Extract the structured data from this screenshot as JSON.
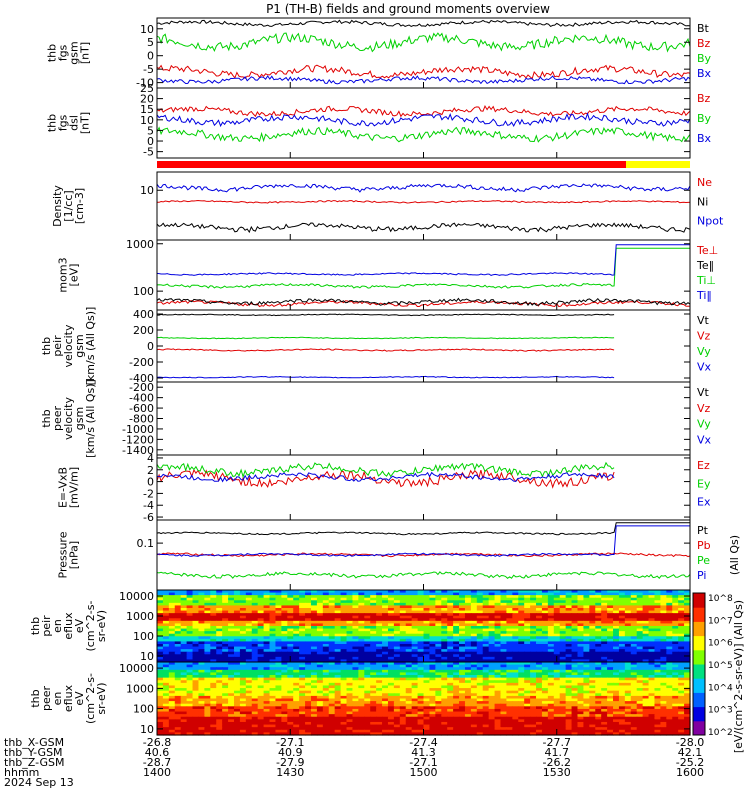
{
  "title": "P1 (TH-B) fields and ground moments overview",
  "colors": {
    "black": "#000000",
    "red": "#e00000",
    "green": "#00d000",
    "blue": "#0000e0",
    "yellow": "#ffff00",
    "bar_red": "#ff0000"
  },
  "chart_data": [
    {
      "type": "line",
      "id": "fgs",
      "ylabel": [
        "thb",
        "fgs",
        "gsm",
        "[nT]"
      ],
      "ylim": [
        -12,
        14
      ],
      "yticks": [
        -10,
        -5,
        0,
        5,
        10
      ],
      "series": [
        {
          "name": "Bt",
          "color": "black",
          "level": 12,
          "amp": 1.2
        },
        {
          "name": "Bz",
          "color": "red",
          "level": -6,
          "amp": 2.5
        },
        {
          "name": "By",
          "color": "green",
          "level": 5,
          "amp": 3.5
        },
        {
          "name": "Bx",
          "color": "blue",
          "level": -9,
          "amp": 1.5
        }
      ]
    },
    {
      "type": "line",
      "id": "fgs_dsl",
      "ylabel": [
        "thb",
        "fgs",
        "dsl",
        "[nT]"
      ],
      "ylim": [
        -8,
        25
      ],
      "yticks": [
        -5,
        0,
        5,
        10,
        15,
        20,
        25
      ],
      "series": [
        {
          "name": "Bz",
          "color": "red",
          "level": 14,
          "amp": 2.5
        },
        {
          "name": "By",
          "color": "green",
          "level": 3,
          "amp": 3.5
        },
        {
          "name": "Bx",
          "color": "blue",
          "level": 10,
          "amp": 3
        }
      ]
    },
    {
      "type": "line",
      "id": "density",
      "ylabel": [
        "Density",
        "[1/cc]",
        "[cm-3]"
      ],
      "ylim": [
        0.5,
        30
      ],
      "log": true,
      "yticks": [
        10
      ],
      "series": [
        {
          "name": "Ne",
          "color": "red",
          "level": 5,
          "amp": 0.4
        },
        {
          "name": "Ni",
          "color": "black",
          "level": 1.1,
          "amp": 0.3
        },
        {
          "name": "Npot",
          "color": "blue",
          "level": 12,
          "amp": 3
        }
      ]
    },
    {
      "type": "line",
      "id": "temp",
      "ylabel": [
        "mom3",
        "[eV]"
      ],
      "ylim": [
        40,
        1200
      ],
      "log": true,
      "yticks": [
        100,
        1000
      ],
      "series": [
        {
          "name": "Te⊥",
          "color": "red",
          "level": 55,
          "amp": 8
        },
        {
          "name": "Te‖",
          "color": "black",
          "level": 60,
          "amp": 10
        },
        {
          "name": "Ti⊥",
          "color": "green",
          "level": 130,
          "amp": 15
        },
        {
          "name": "Ti‖",
          "color": "blue",
          "level": 230,
          "amp": 15
        }
      ]
    },
    {
      "type": "line",
      "id": "velocity",
      "ylabel": [
        "thb",
        "peir",
        "velocity",
        "gsm",
        "[km/s (All Qs)]"
      ],
      "ylim": [
        -450,
        450
      ],
      "yticks": [
        -400,
        -200,
        0,
        200,
        400
      ],
      "series": [
        {
          "name": "Vt",
          "color": "black",
          "level": 390,
          "amp": 10
        },
        {
          "name": "Vz",
          "color": "red",
          "level": -50,
          "amp": 15
        },
        {
          "name": "Vy",
          "color": "green",
          "level": 100,
          "amp": 10
        },
        {
          "name": "Vx",
          "color": "blue",
          "level": -390,
          "amp": 10
        }
      ]
    },
    {
      "type": "line",
      "id": "velocity2",
      "ylabel": [
        "thb",
        "peer",
        "velocity",
        "gsm",
        "[km/s (All Qs)]"
      ],
      "ylim": [
        -1500,
        -100
      ],
      "yticks": [
        -200,
        -400,
        -600,
        -800,
        -1000,
        -1200,
        -1400
      ],
      "series": [
        {
          "name": "Vt",
          "color": "black"
        },
        {
          "name": "Vz",
          "color": "red"
        },
        {
          "name": "Vy",
          "color": "green"
        },
        {
          "name": "Vx",
          "color": "blue"
        }
      ]
    },
    {
      "type": "line",
      "id": "efield",
      "ylabel": [
        "E=-VxB",
        "[mV/m]"
      ],
      "ylim": [
        -6.5,
        4.5
      ],
      "yticks": [
        -6,
        -4,
        -2,
        0,
        2,
        4
      ],
      "series": [
        {
          "name": "Ez",
          "color": "red",
          "level": 0.5,
          "amp": 1.5
        },
        {
          "name": "Ey",
          "color": "green",
          "level": 2,
          "amp": 1.2
        },
        {
          "name": "Ex",
          "color": "blue",
          "level": 0.8,
          "amp": 0.8
        }
      ]
    },
    {
      "type": "line",
      "id": "pressure",
      "ylabel": [
        "Pressure",
        "[nPa]"
      ],
      "ylim": [
        0.006,
        0.4
      ],
      "log": true,
      "yticks": [
        0.1
      ],
      "series": [
        {
          "name": "Pt",
          "color": "black",
          "level": 0.18,
          "amp": 0.015
        },
        {
          "name": "Pb",
          "color": "red",
          "level": 0.05,
          "amp": 0.006
        },
        {
          "name": "Pe",
          "color": "green",
          "level": 0.015,
          "amp": 0.003
        },
        {
          "name": "Pi",
          "color": "blue",
          "level": 0.05,
          "amp": 0.005
        }
      ],
      "ylabel_right": "(All Qs)"
    },
    {
      "type": "heatmap",
      "id": "peir_en",
      "ylabel": [
        "thb",
        "peir",
        "en",
        "eflux",
        "eV",
        "(cm^2-s-",
        "sr-eV)"
      ],
      "ylim": [
        5,
        20000
      ],
      "log": true,
      "yticks": [
        10,
        100,
        1000,
        10000
      ]
    },
    {
      "type": "heatmap",
      "id": "peer_en",
      "ylabel": [
        "thb",
        "peer",
        "en",
        "eflux",
        "eV",
        "(cm^2-s-",
        "sr-eV)"
      ],
      "ylim": [
        5,
        20000
      ],
      "log": true,
      "yticks": [
        10,
        100,
        1000,
        10000
      ]
    }
  ],
  "colorbar": {
    "label": "[eV/(cm^2-s-sr-eV)] (All Qs)",
    "ticks": [
      "10^2",
      "10^3",
      "10^4",
      "10^5",
      "10^6",
      "10^7",
      "10^8"
    ]
  },
  "xaxis": {
    "rows": [
      {
        "label": "thb_X-GSM",
        "values": [
          "-26.8",
          "-27.1",
          "-27.4",
          "-27.7",
          "-28.0"
        ]
      },
      {
        "label": "thb_Y-GSM",
        "values": [
          "40.6",
          "40.9",
          "41.3",
          "41.7",
          "42.1"
        ]
      },
      {
        "label": "thb_Z-GSM",
        "values": [
          "-28.7",
          "-27.9",
          "-27.1",
          "-26.2",
          "-25.2"
        ]
      },
      {
        "label": "hhmm",
        "values": [
          "1400",
          "1430",
          "1500",
          "1530",
          "1600"
        ]
      }
    ],
    "date": "2024 Sep 13"
  },
  "status_bar": {
    "segments": [
      {
        "color": "bar_red",
        "from": 0,
        "to": 0.88
      },
      {
        "color": "yellow",
        "from": 0.88,
        "to": 1
      }
    ]
  }
}
